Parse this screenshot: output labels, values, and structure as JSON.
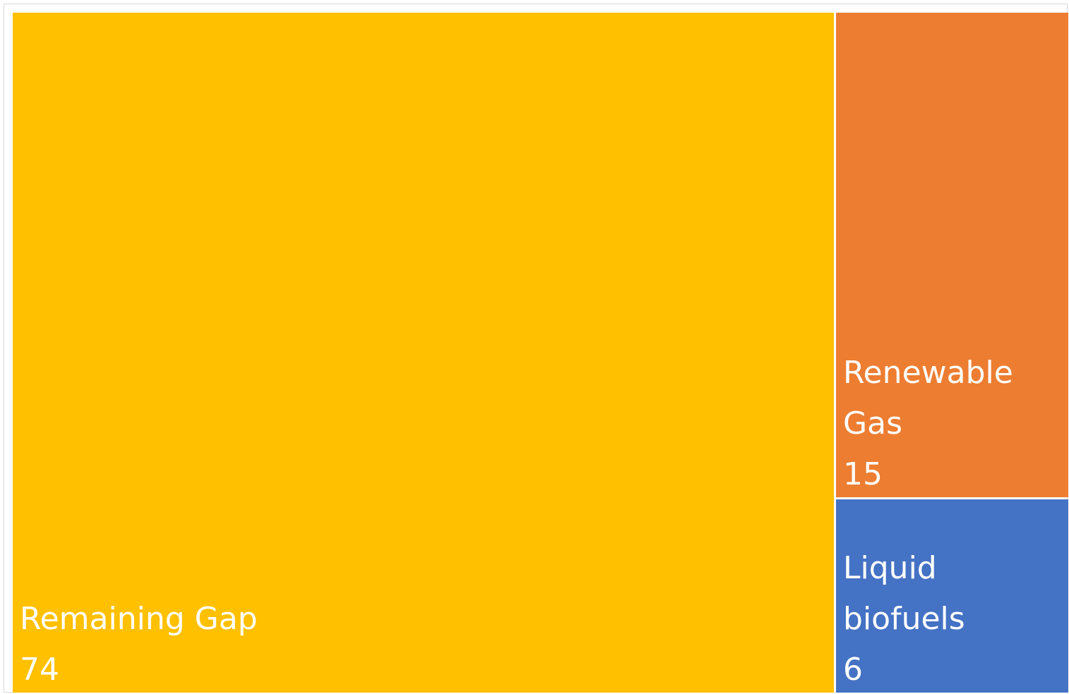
{
  "chart_data": {
    "type": "treemap",
    "title": "",
    "items": [
      {
        "label_lines": [
          "Remaining Gap"
        ],
        "value": 74,
        "value_label": "74",
        "color": "#FFC000"
      },
      {
        "label_lines": [
          "Renewable",
          "Gas"
        ],
        "value": 15,
        "value_label": "15",
        "color": "#ED7D31"
      },
      {
        "label_lines": [
          "Liquid",
          "biofuels"
        ],
        "value": 6,
        "value_label": "6",
        "color": "#4472C4"
      }
    ]
  }
}
